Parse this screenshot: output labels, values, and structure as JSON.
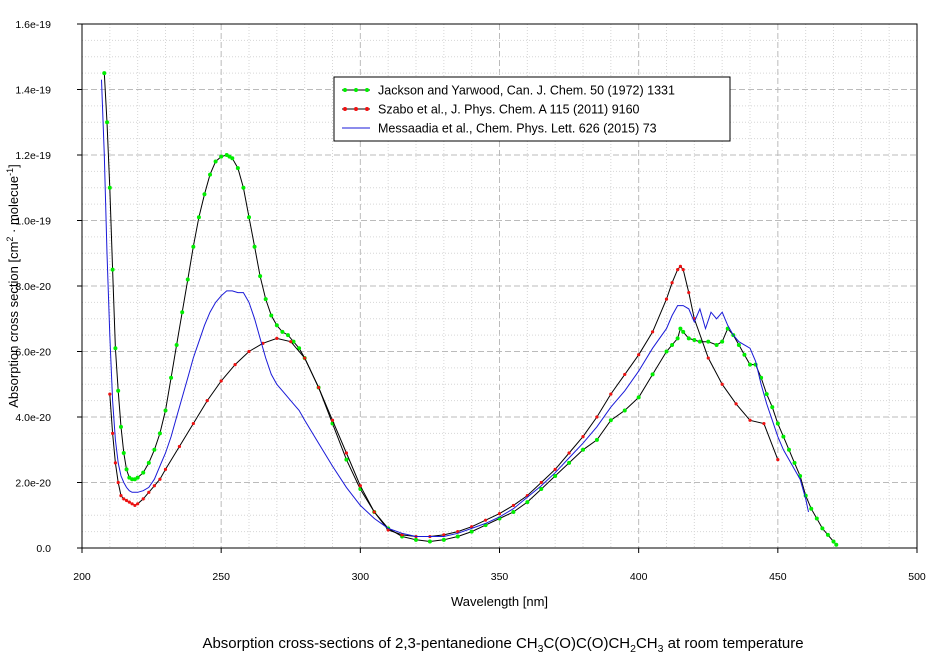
{
  "chart_data": {
    "type": "line",
    "caption": {
      "prefix": "Absorption cross-sections of 2,3-pentanedione CH",
      "parts": [
        "CH",
        "3",
        "C(O)C(O)CH",
        "2",
        "CH",
        "3",
        " at room temperature"
      ]
    },
    "xlabel": "Wavelength [nm]",
    "ylabel": {
      "main": "Absorption cross section [cm",
      "sup1": "2",
      "mid": " · molecue",
      "sup2": "-1",
      "end": "]"
    },
    "xlim": [
      200,
      500
    ],
    "ylim": [
      0,
      1.6e-19
    ],
    "x_ticks": [
      200,
      250,
      300,
      350,
      400,
      450,
      500
    ],
    "y_ticks": [
      {
        "value": 0,
        "label": "0.0"
      },
      {
        "value": 2e-20,
        "label": "2.0e-20"
      },
      {
        "value": 4e-20,
        "label": "4.0e-20"
      },
      {
        "value": 6e-20,
        "label": "6.0e-20"
      },
      {
        "value": 8e-20,
        "label": "8.0e-20"
      },
      {
        "value": 1e-19,
        "label": "1.0e-19"
      },
      {
        "value": 1.2e-19,
        "label": "1.2e-19"
      },
      {
        "value": 1.4e-19,
        "label": "1.4e-19"
      },
      {
        "value": 1.6e-19,
        "label": "1.6e-19"
      }
    ],
    "grid": true,
    "legend_position": "top-center",
    "y_scale_note": "y values in units of 1e-20 cm2/molecule",
    "series": [
      {
        "name": "Jackson and Yarwood, Can. J. Chem. 50 (1972) 1331",
        "color": "#00ee00",
        "line_color": "#000000",
        "marker": "circle",
        "x": [
          208,
          209,
          210,
          211,
          212,
          213,
          214,
          215,
          216,
          217,
          218,
          219,
          220,
          222,
          224,
          226,
          228,
          230,
          232,
          234,
          236,
          238,
          240,
          242,
          244,
          246,
          248,
          250,
          252,
          253,
          254,
          256,
          258,
          260,
          262,
          264,
          266,
          268,
          270,
          272,
          274,
          276,
          278,
          280,
          285,
          290,
          295,
          300,
          305,
          310,
          315,
          320,
          325,
          330,
          335,
          340,
          345,
          350,
          355,
          360,
          365,
          370,
          375,
          380,
          385,
          390,
          395,
          400,
          405,
          410,
          412,
          414,
          415,
          416,
          418,
          420,
          422,
          425,
          428,
          430,
          432,
          434,
          436,
          438,
          440,
          442,
          444,
          446,
          448,
          450,
          452,
          454,
          456,
          458,
          460,
          462,
          464,
          466,
          468,
          470,
          471
        ],
        "y": [
          14.5,
          13.0,
          11.0,
          8.5,
          6.1,
          4.8,
          3.7,
          2.9,
          2.4,
          2.15,
          2.1,
          2.1,
          2.15,
          2.3,
          2.6,
          3.0,
          3.5,
          4.2,
          5.2,
          6.2,
          7.2,
          8.2,
          9.2,
          10.1,
          10.8,
          11.4,
          11.8,
          11.95,
          12.0,
          11.95,
          11.9,
          11.6,
          11.0,
          10.1,
          9.2,
          8.3,
          7.6,
          7.1,
          6.8,
          6.6,
          6.5,
          6.3,
          6.1,
          5.8,
          4.9,
          3.8,
          2.7,
          1.8,
          1.1,
          0.6,
          0.35,
          0.25,
          0.2,
          0.25,
          0.35,
          0.5,
          0.7,
          0.9,
          1.1,
          1.4,
          1.8,
          2.2,
          2.6,
          3.0,
          3.3,
          3.9,
          4.2,
          4.6,
          5.3,
          6.0,
          6.2,
          6.4,
          6.7,
          6.6,
          6.4,
          6.35,
          6.3,
          6.3,
          6.2,
          6.3,
          6.7,
          6.5,
          6.2,
          5.9,
          5.6,
          5.6,
          5.2,
          4.7,
          4.3,
          3.8,
          3.4,
          3.0,
          2.6,
          2.2,
          1.6,
          1.2,
          0.9,
          0.6,
          0.4,
          0.2,
          0.1
        ]
      },
      {
        "name": "Szabo et al., J. Phys. Chem. A 115 (2011) 9160",
        "color": "#ee1111",
        "line_color": "#000000",
        "marker": "dot",
        "x": [
          210,
          211,
          212,
          213,
          214,
          215,
          216,
          217,
          218,
          219,
          220,
          222,
          224,
          226,
          228,
          230,
          235,
          240,
          245,
          250,
          255,
          260,
          265,
          270,
          275,
          280,
          285,
          290,
          295,
          300,
          305,
          310,
          315,
          320,
          325,
          330,
          335,
          340,
          345,
          350,
          355,
          360,
          365,
          370,
          375,
          380,
          385,
          390,
          395,
          400,
          405,
          410,
          412,
          414,
          415,
          416,
          418,
          420,
          425,
          430,
          435,
          440,
          445,
          450
        ],
        "y": [
          4.7,
          3.5,
          2.6,
          2.0,
          1.6,
          1.5,
          1.45,
          1.4,
          1.35,
          1.3,
          1.35,
          1.5,
          1.7,
          1.9,
          2.1,
          2.4,
          3.1,
          3.8,
          4.5,
          5.1,
          5.6,
          6.0,
          6.25,
          6.4,
          6.3,
          5.8,
          4.9,
          3.9,
          2.9,
          1.9,
          1.1,
          0.55,
          0.4,
          0.35,
          0.35,
          0.4,
          0.5,
          0.65,
          0.85,
          1.05,
          1.3,
          1.6,
          2.0,
          2.4,
          2.9,
          3.4,
          4.0,
          4.7,
          5.3,
          5.9,
          6.6,
          7.6,
          8.1,
          8.5,
          8.6,
          8.5,
          7.8,
          7.0,
          5.8,
          5.0,
          4.4,
          3.9,
          3.8,
          2.7
        ]
      },
      {
        "name": "Messaadia et al., Chem. Phys. Lett. 626 (2015) 73",
        "color": "#1a1ad8",
        "line_color": "#1a1ad8",
        "marker": "none",
        "x": [
          207,
          208,
          209,
          210,
          211,
          212,
          213,
          214,
          215,
          216,
          217,
          218,
          219,
          220,
          222,
          224,
          226,
          228,
          230,
          232,
          234,
          236,
          238,
          240,
          242,
          244,
          246,
          248,
          250,
          252,
          254,
          256,
          258,
          260,
          262,
          264,
          266,
          268,
          270,
          272,
          274,
          276,
          278,
          280,
          285,
          290,
          295,
          300,
          305,
          310,
          315,
          320,
          325,
          330,
          335,
          340,
          345,
          350,
          355,
          360,
          365,
          370,
          375,
          380,
          385,
          390,
          395,
          400,
          405,
          410,
          412,
          414,
          416,
          418,
          420,
          422,
          424,
          426,
          428,
          430,
          432,
          434,
          436,
          438,
          440,
          442,
          444,
          446,
          448,
          450,
          452,
          454,
          456,
          458,
          460,
          461
        ],
        "y": [
          14.3,
          12.0,
          9.0,
          6.5,
          4.5,
          3.3,
          2.6,
          2.2,
          2.0,
          1.85,
          1.75,
          1.7,
          1.7,
          1.7,
          1.75,
          1.85,
          2.1,
          2.5,
          2.9,
          3.4,
          4.0,
          4.6,
          5.2,
          5.8,
          6.3,
          6.8,
          7.2,
          7.5,
          7.7,
          7.85,
          7.85,
          7.8,
          7.8,
          7.5,
          7.0,
          6.4,
          5.8,
          5.3,
          5.0,
          4.8,
          4.6,
          4.4,
          4.2,
          3.9,
          3.2,
          2.5,
          1.85,
          1.3,
          0.9,
          0.6,
          0.45,
          0.35,
          0.35,
          0.35,
          0.45,
          0.6,
          0.75,
          0.95,
          1.2,
          1.55,
          1.9,
          2.3,
          2.75,
          3.2,
          3.7,
          4.3,
          4.8,
          5.4,
          6.1,
          6.7,
          7.1,
          7.4,
          7.4,
          7.3,
          6.9,
          7.3,
          6.7,
          7.2,
          7.0,
          7.2,
          6.8,
          6.5,
          6.3,
          6.2,
          6.1,
          5.7,
          5.0,
          4.4,
          3.9,
          3.4,
          3.0,
          2.7,
          2.4,
          2.1,
          1.5,
          1.1
        ]
      }
    ]
  }
}
